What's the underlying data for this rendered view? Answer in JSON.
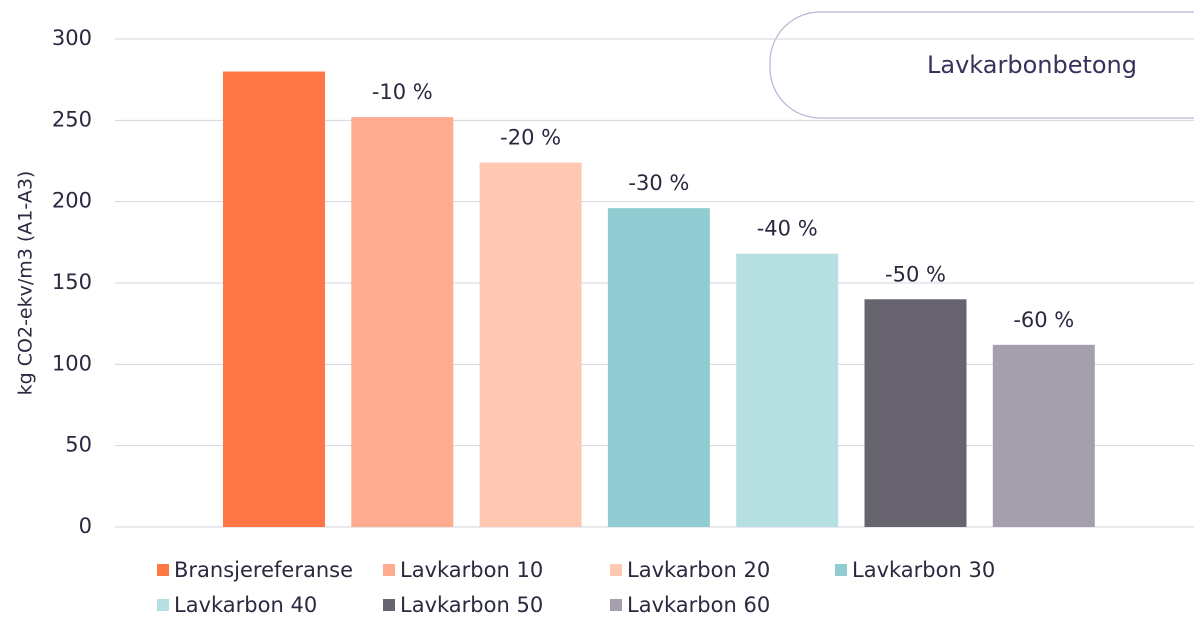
{
  "chart_data": {
    "type": "bar",
    "title": "Lavkarbonbetong",
    "y_label": "kg CO2-ekv/m3 (A1-A3)",
    "ylim": [
      0,
      300
    ],
    "yticks": [
      0,
      50,
      100,
      150,
      200,
      250,
      300
    ],
    "grid": true,
    "legend": "bottom",
    "series": [
      {
        "name": "Bransjereferanse",
        "color": "#ff7744",
        "values": [
          280
        ]
      },
      {
        "name": "Lavkarbon 10",
        "color": "#ffab8f",
        "values": [
          252
        ],
        "annotation": "-10 %"
      },
      {
        "name": "Lavkarbon 20",
        "color": "#ffc8b3",
        "values": [
          224
        ],
        "annotation": "-20 %"
      },
      {
        "name": "Lavkarbon 30",
        "color": "#92ccd3",
        "values": [
          196
        ],
        "annotation": "-30 %"
      },
      {
        "name": "Lavkarbon 40",
        "color": "#b5dfe0",
        "values": [
          168
        ],
        "annotation": "-40 %"
      },
      {
        "name": "Lavkarbon 50",
        "color": "#67646f",
        "values": [
          140
        ],
        "annotation": "-50 %"
      },
      {
        "name": "Lavkarbon 60",
        "color": "#a59eac",
        "values": [
          112
        ],
        "annotation": "-60 %"
      }
    ]
  }
}
